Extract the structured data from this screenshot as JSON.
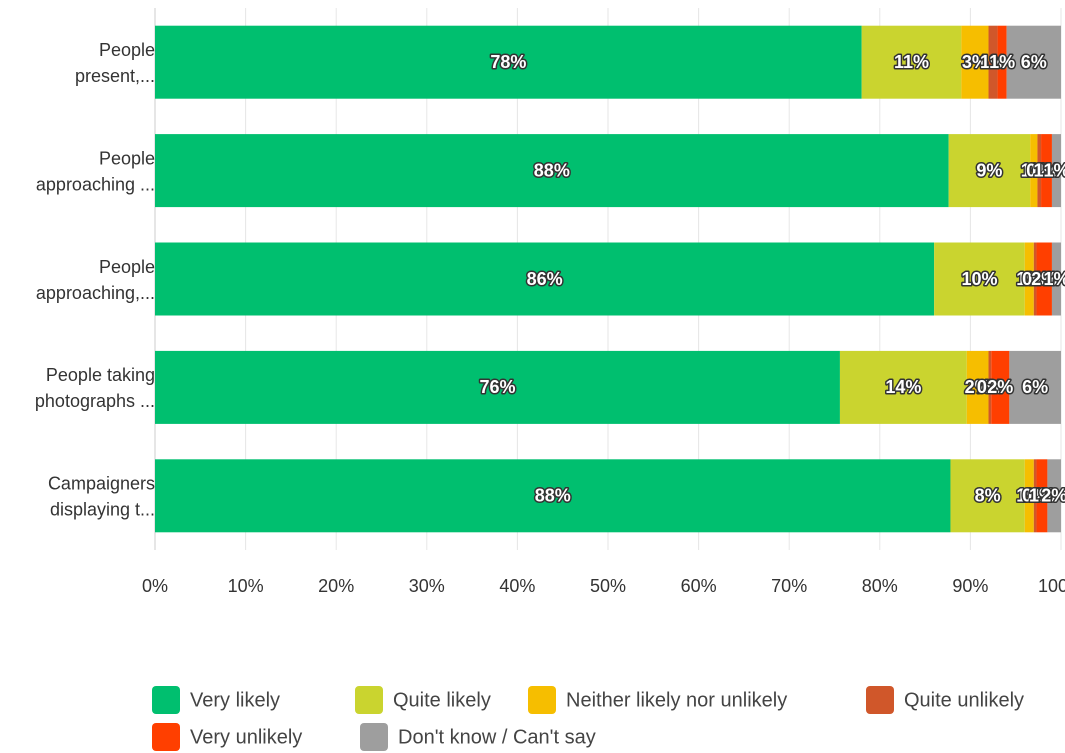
{
  "chart_data": {
    "type": "stacked-bar-horizontal",
    "categories": [
      [
        "People",
        "present,..."
      ],
      [
        "People",
        "approaching ..."
      ],
      [
        "People",
        "approaching,..."
      ],
      [
        "People taking",
        "photographs ..."
      ],
      [
        "Campaigners",
        "displaying t..."
      ]
    ],
    "series": [
      {
        "name": "Very likely",
        "color": "#00bf6f",
        "values": [
          78,
          87.6,
          86,
          75.6,
          87.8
        ],
        "value_labels": [
          "78%",
          "88%",
          "86%",
          "76%",
          "88%"
        ]
      },
      {
        "name": "Quite likely",
        "color": "#cad42f",
        "values": [
          11,
          9,
          10,
          14,
          8.2
        ],
        "value_labels": [
          "11%",
          "9%",
          "10%",
          "14%",
          "8%"
        ]
      },
      {
        "name": "Neither likely nor unlikely",
        "color": "#f6be00",
        "values": [
          3,
          0.8,
          1,
          2.4,
          1
        ],
        "value_labels": [
          "3%",
          "1%",
          "1%",
          "2%",
          "1%"
        ]
      },
      {
        "name": "Quite unlikely",
        "color": "#d0572a",
        "values": [
          1,
          0.4,
          0.3,
          0.3,
          0.3
        ],
        "value_labels": [
          "1%",
          "0%",
          "0%",
          "0%",
          "0%"
        ]
      },
      {
        "name": "Very unlikely",
        "color": "#ff3f00",
        "values": [
          1,
          1.2,
          1.7,
          2,
          1.2
        ],
        "value_labels": [
          "1%",
          "1%",
          "2%",
          "2%",
          "1%"
        ]
      },
      {
        "name": "Don't know / Can't say",
        "color": "#9e9e9e",
        "values": [
          6,
          1,
          1,
          5.7,
          1.5
        ],
        "value_labels": [
          "6%",
          "1%",
          "1%",
          "6%",
          "2%"
        ]
      }
    ],
    "xlim": [
      0,
      100
    ],
    "xticks": [
      {
        "value": 0,
        "label": "0%"
      },
      {
        "value": 10,
        "label": "10%"
      },
      {
        "value": 20,
        "label": "20%"
      },
      {
        "value": 30,
        "label": "30%"
      },
      {
        "value": 40,
        "label": "40%"
      },
      {
        "value": 50,
        "label": "50%"
      },
      {
        "value": 60,
        "label": "60%"
      },
      {
        "value": 70,
        "label": "70%"
      },
      {
        "value": 80,
        "label": "80%"
      },
      {
        "value": 90,
        "label": "90%"
      },
      {
        "value": 100,
        "label": "100%"
      }
    ],
    "grid": true,
    "legend": "bottom"
  }
}
